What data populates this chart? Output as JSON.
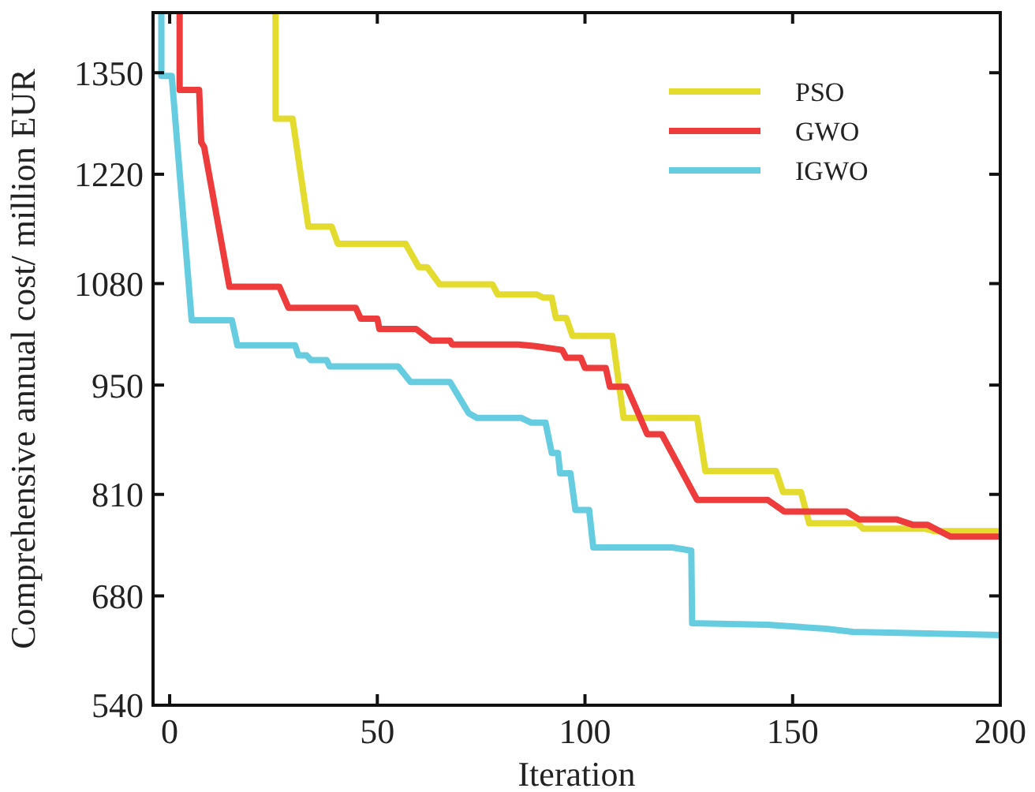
{
  "chart_data": {
    "type": "line",
    "xlabel": "Iteration",
    "ylabel": "Comprehensive annual  cost/ million EUR",
    "xlim": [
      -4,
      200
    ],
    "ylim": [
      540,
      1427
    ],
    "xticks": [
      0,
      50,
      100,
      150,
      200
    ],
    "yticks": [
      540,
      680,
      810,
      950,
      1080,
      1220,
      1350
    ],
    "grid": false,
    "legend": "top right",
    "marker": "none",
    "line_style": "solid",
    "series": [
      {
        "name": "PSO",
        "color": "#e3dc2e",
        "x": [
          25.5,
          25.5,
          29.6,
          33.4,
          39,
          40.5,
          56.8,
          60,
          62,
          65,
          77.7,
          79,
          88.4,
          90,
          92,
          93,
          95.5,
          97,
          101,
          106.6,
          109.3,
          127,
          129,
          146,
          147.7,
          152,
          154,
          165.6,
          167,
          182,
          184,
          200
        ],
        "values": [
          1425,
          1291,
          1291,
          1153,
          1153,
          1131,
          1131,
          1101,
          1101,
          1079,
          1079,
          1066,
          1066,
          1062,
          1062,
          1036,
          1036,
          1013,
          1013,
          1013,
          908,
          908,
          840,
          840,
          813,
          813,
          773,
          773,
          766,
          766,
          763,
          763
        ]
      },
      {
        "name": "GWO",
        "color": "#ee3b3b",
        "x": [
          2.4,
          2.4,
          7.1,
          7.6,
          8.3,
          14.4,
          26.4,
          28.6,
          44.8,
          46,
          50,
          50.5,
          59.3,
          63,
          67.5,
          68,
          84,
          88,
          94.5,
          95.5,
          99,
          100,
          105,
          106,
          110,
          112,
          115,
          118.5,
          127,
          144,
          148,
          163,
          166,
          175,
          179,
          182.5,
          188,
          200
        ],
        "values": [
          1425,
          1328,
          1328,
          1261,
          1255,
          1076,
          1076,
          1049,
          1049,
          1035,
          1035,
          1022,
          1022,
          1007,
          1007,
          1002,
          1002,
          1000,
          995,
          985,
          985,
          972,
          972,
          948,
          948,
          924,
          887,
          887,
          803,
          803,
          788,
          788,
          778,
          778,
          771,
          771,
          756,
          756
        ]
      },
      {
        "name": "IGWO",
        "color": "#66cde0",
        "x": [
          -2,
          -2,
          0.5,
          5.3,
          15,
          16.3,
          30.2,
          31,
          33,
          34,
          37.8,
          38.5,
          55,
          58,
          67.5,
          72,
          74,
          84.6,
          87,
          90.5,
          92,
          93.5,
          94,
          96.5,
          97.7,
          100,
          101,
          102,
          103,
          121,
          125.6,
          125.8,
          144,
          158,
          164.5,
          200
        ],
        "values": [
          1425,
          1346,
          1346,
          1033,
          1033,
          1001,
          1001,
          988,
          988,
          982,
          982,
          974,
          974,
          954,
          954,
          914,
          908,
          908,
          902,
          902,
          863,
          863,
          837,
          837,
          790,
          790,
          790,
          742,
          742,
          742,
          738,
          645,
          643,
          638,
          634,
          630
        ]
      }
    ]
  }
}
